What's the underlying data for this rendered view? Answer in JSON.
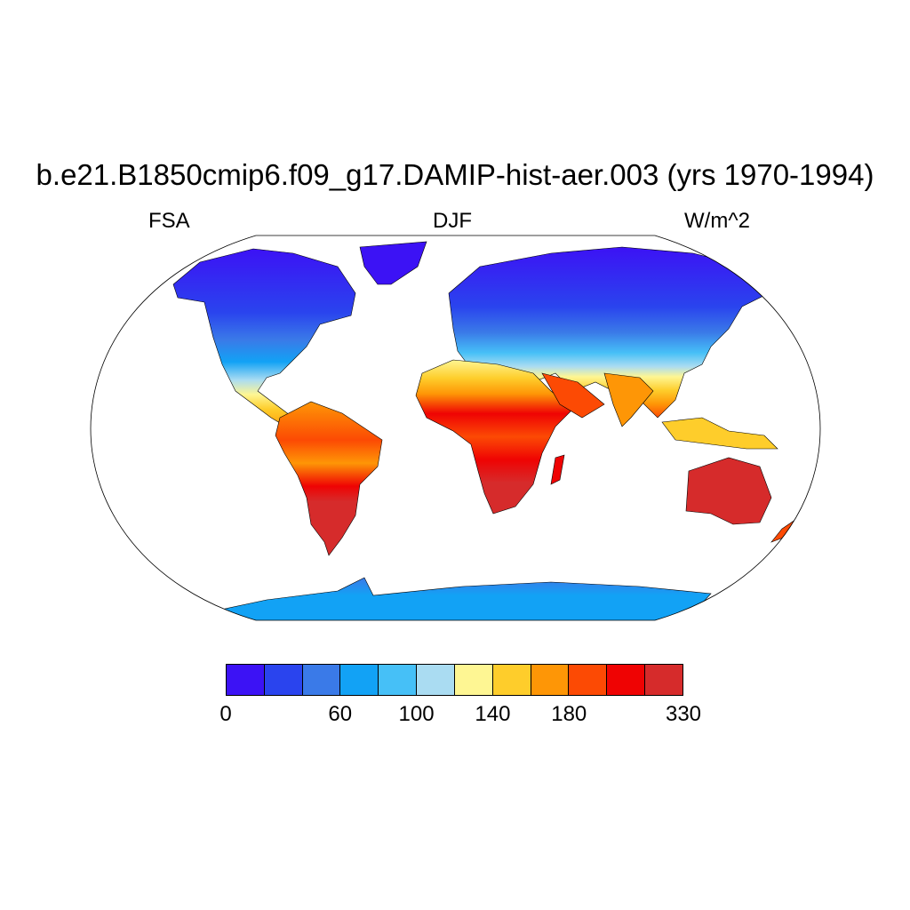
{
  "title": "b.e21.B1850cmip6.f09_g17.DAMIP-hist-aer.003 (yrs 1970-1994)",
  "left_label": "FSA",
  "center_label": "DJF",
  "right_label": "W/m^2",
  "colorbar": {
    "colors": [
      "#3c12f5",
      "#2a44ee",
      "#3a7ae8",
      "#12a2f5",
      "#46c0f7",
      "#aadcf2",
      "#fef693",
      "#fecd2b",
      "#fe9606",
      "#fc4a04",
      "#ef0303",
      "#d62b2b"
    ],
    "labels": [
      {
        "text": "0",
        "boundary": 0
      },
      {
        "text": "60",
        "boundary": 3
      },
      {
        "text": "100",
        "boundary": 5
      },
      {
        "text": "140",
        "boundary": 7
      },
      {
        "text": "180",
        "boundary": 9
      },
      {
        "text": "330",
        "boundary": 12
      }
    ]
  }
}
